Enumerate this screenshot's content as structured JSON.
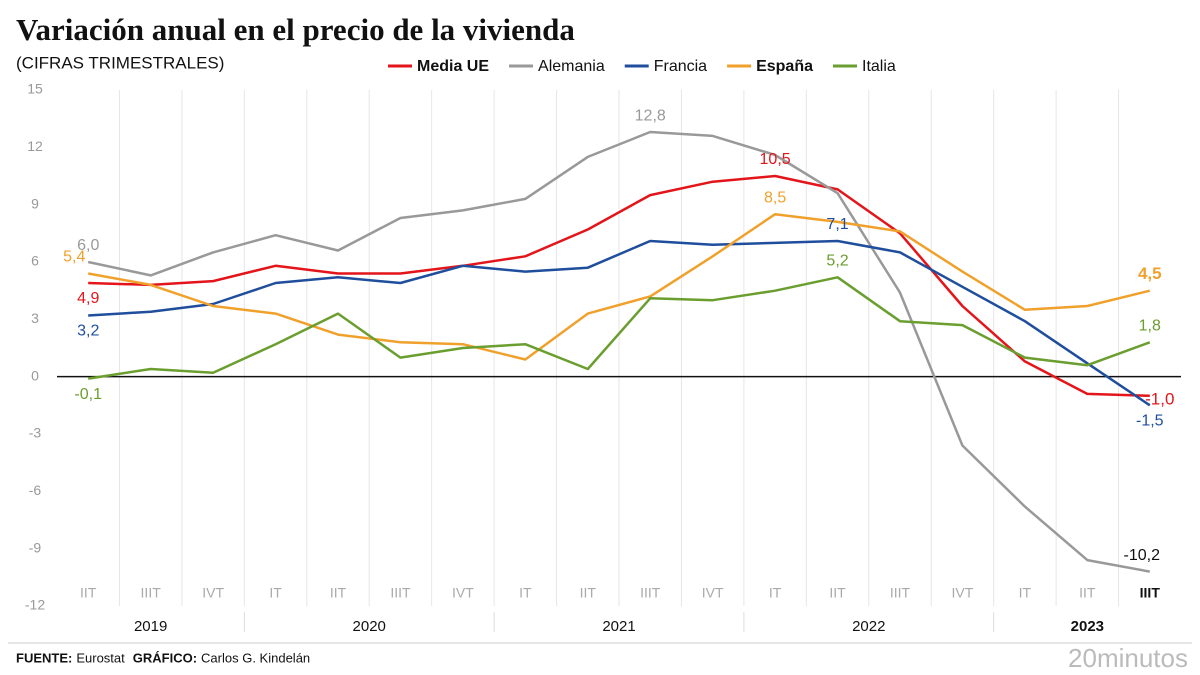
{
  "chart_data": {
    "type": "line",
    "title": "Variación anual en el precio de la vivienda",
    "subtitle": "(CIFRAS TRIMESTRALES)",
    "categories": [
      "IIT",
      "IIIT",
      "IVT",
      "IT",
      "IIT",
      "IIIT",
      "IVT",
      "IT",
      "IIT",
      "IIIT",
      "IVT",
      "IT",
      "IIT",
      "IIIT",
      "IVT",
      "IT",
      "IIT",
      "IIIT"
    ],
    "years": [
      {
        "label": "2019",
        "start": 0,
        "end": 2
      },
      {
        "label": "2020",
        "start": 3,
        "end": 6
      },
      {
        "label": "2021",
        "start": 7,
        "end": 10
      },
      {
        "label": "2022",
        "start": 11,
        "end": 14
      },
      {
        "label": "2023",
        "start": 15,
        "end": 17
      }
    ],
    "series": [
      {
        "name": "Media UE",
        "color": "#e3151a",
        "bold": true,
        "values": [
          4.9,
          4.8,
          5.0,
          5.8,
          5.4,
          5.4,
          5.8,
          6.3,
          7.7,
          9.5,
          10.2,
          10.5,
          9.8,
          7.5,
          3.7,
          0.8,
          -0.9,
          -1.0
        ],
        "value_labels": [
          "4,9",
          null,
          null,
          null,
          null,
          null,
          null,
          null,
          null,
          null,
          null,
          "10,5",
          null,
          null,
          null,
          null,
          null,
          "-1,0"
        ]
      },
      {
        "name": "Alemania",
        "color": "#999999",
        "bold": false,
        "values": [
          6.0,
          5.3,
          6.5,
          7.4,
          6.6,
          8.3,
          8.7,
          9.3,
          11.5,
          12.8,
          12.6,
          11.6,
          9.6,
          4.4,
          -3.6,
          -6.8,
          -9.6,
          -10.2
        ],
        "value_labels": [
          "6,0",
          null,
          null,
          null,
          null,
          null,
          null,
          null,
          null,
          "12,8",
          null,
          null,
          null,
          null,
          null,
          null,
          null,
          "-10,2"
        ]
      },
      {
        "name": "Francia",
        "color": "#1f4e9c",
        "bold": false,
        "values": [
          3.2,
          3.4,
          3.8,
          4.9,
          5.2,
          4.9,
          5.8,
          5.5,
          5.7,
          7.1,
          6.9,
          7.0,
          7.1,
          6.5,
          4.7,
          2.9,
          0.7,
          -1.5
        ],
        "value_labels": [
          "3,2",
          null,
          null,
          null,
          null,
          null,
          null,
          null,
          null,
          null,
          null,
          null,
          "7,1",
          null,
          null,
          null,
          null,
          "-1,5"
        ]
      },
      {
        "name": "España",
        "color": "#f0a12c",
        "bold": true,
        "values": [
          5.4,
          4.8,
          3.7,
          3.3,
          2.2,
          1.8,
          1.7,
          0.9,
          3.3,
          4.2,
          6.3,
          8.5,
          8.1,
          7.6,
          5.5,
          3.5,
          3.7,
          4.5
        ],
        "value_labels": [
          "5,4",
          null,
          null,
          null,
          null,
          null,
          null,
          null,
          null,
          null,
          null,
          "8,5",
          null,
          null,
          null,
          null,
          null,
          "4,5"
        ]
      },
      {
        "name": "Italia",
        "color": "#6a9e2f",
        "bold": false,
        "values": [
          -0.1,
          0.4,
          0.2,
          1.7,
          3.3,
          1.0,
          1.5,
          1.7,
          0.4,
          4.1,
          4.0,
          4.5,
          5.2,
          2.9,
          2.7,
          1.0,
          0.6,
          1.8
        ],
        "value_labels": [
          "-0,1",
          null,
          null,
          null,
          null,
          null,
          null,
          null,
          null,
          null,
          null,
          null,
          "5,2",
          null,
          null,
          null,
          null,
          "1,8"
        ]
      }
    ],
    "ylim": [
      -12,
      15
    ],
    "yticks": [
      15,
      12,
      9,
      6,
      3,
      0,
      -3,
      -6,
      -9,
      -12
    ],
    "credits": [
      {
        "label": "FUENTE:",
        "text": "Eurostat"
      },
      {
        "label": "GRÁFICO:",
        "text": "Carlos G. Kindelán"
      }
    ],
    "brand": "20minutos"
  }
}
